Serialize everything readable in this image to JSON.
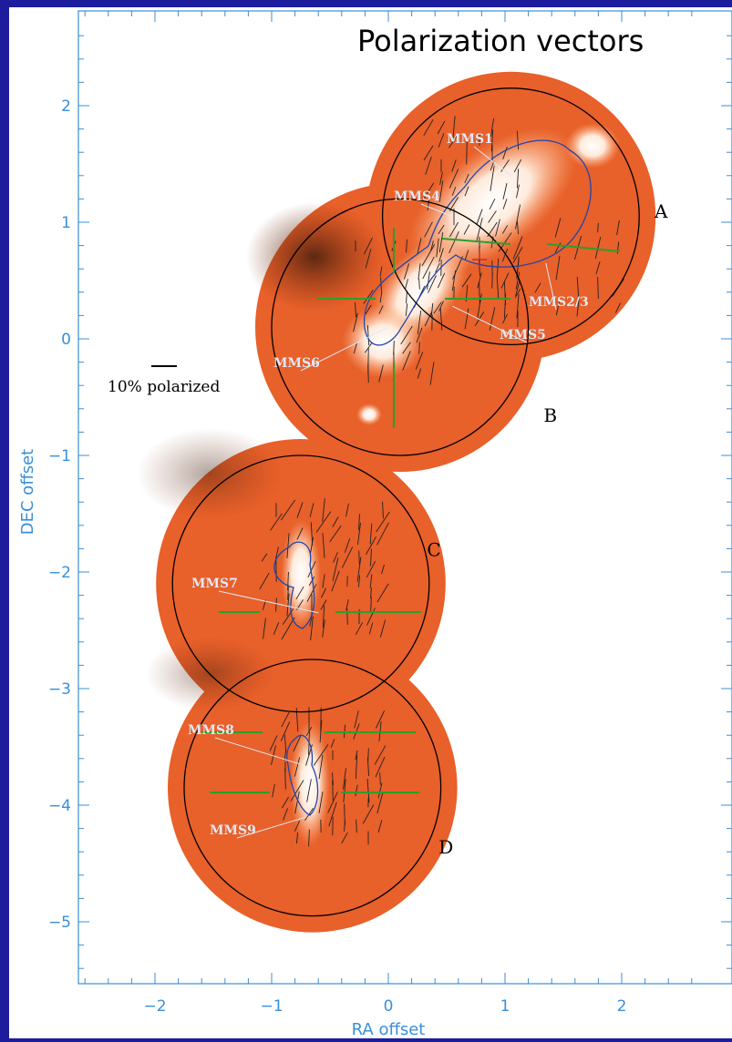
{
  "slide": {
    "title": "Polarization vectors"
  },
  "figure": {
    "xlabel": "RA offset",
    "ylabel": "DEC offset",
    "x_ticks": [
      "−2",
      "−1",
      "0",
      "1",
      "2"
    ],
    "y_ticks": [
      "2",
      "1",
      "0",
      "−1",
      "−2",
      "−3",
      "−4",
      "−5"
    ],
    "scale_bar_label": "10% polarized",
    "fields": [
      {
        "label": "A",
        "center": [
          1.05,
          1.05
        ],
        "radius": 1.1
      },
      {
        "label": "B",
        "center": [
          0.1,
          0.1
        ],
        "radius": 1.1
      },
      {
        "label": "C",
        "center": [
          -0.75,
          -2.1
        ],
        "radius": 1.1
      },
      {
        "label": "D",
        "center": [
          -0.65,
          -3.85
        ],
        "radius": 1.1
      }
    ],
    "sources": [
      {
        "label": "MMS1",
        "point": [
          1.05,
          1.4
        ]
      },
      {
        "label": "MMS4",
        "point": [
          0.55,
          1.05
        ]
      },
      {
        "label": "MMS2/3",
        "point": [
          1.35,
          0.65
        ]
      },
      {
        "label": "MMS5",
        "point": [
          0.55,
          0.28
        ]
      },
      {
        "label": "MMS6",
        "point": [
          0.0,
          0.1
        ]
      },
      {
        "label": "MMS7",
        "point": [
          -0.6,
          -2.35
        ]
      },
      {
        "label": "MMS8",
        "point": [
          -0.75,
          -3.65
        ]
      },
      {
        "label": "MMS9",
        "point": [
          -0.7,
          -4.1
        ]
      }
    ],
    "colors": {
      "map": "#e8602a",
      "contour": "#2244aa",
      "crosshair": "#2aa02a",
      "background": "#1c1c9c",
      "tick_label": "#3a8fd8"
    }
  }
}
